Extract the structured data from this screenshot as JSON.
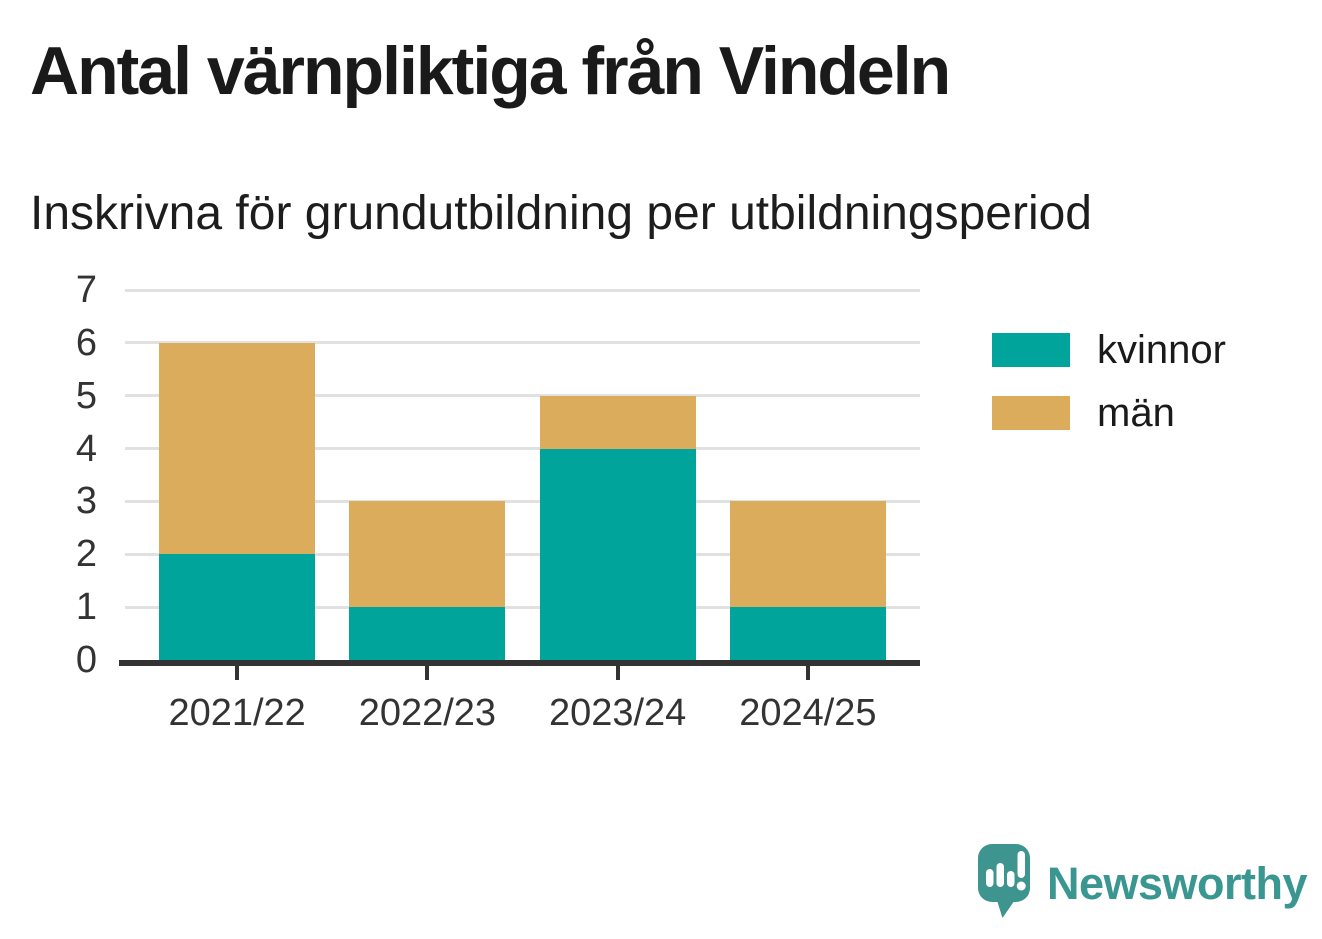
{
  "header": {
    "title": "Antal värnpliktiga från Vindeln",
    "subtitle": "Inskrivna för grundutbildning per utbildningsperiod"
  },
  "chart_data": {
    "type": "bar",
    "stacked": true,
    "categories": [
      "2021/22",
      "2022/23",
      "2023/24",
      "2024/25"
    ],
    "series": [
      {
        "name": "kvinnor",
        "color": "#00a49a",
        "values": [
          2,
          1,
          4,
          1
        ]
      },
      {
        "name": "män",
        "color": "#dbac5c",
        "values": [
          4,
          2,
          1,
          2
        ]
      }
    ],
    "totals": [
      6,
      3,
      5,
      3
    ],
    "title": "Antal värnpliktiga från Vindeln",
    "subtitle": "Inskrivna för grundutbildning per utbildningsperiod",
    "xlabel": "",
    "ylabel": "",
    "ylim": [
      0,
      7
    ],
    "yticks": [
      0,
      1,
      2,
      3,
      4,
      5,
      6,
      7
    ],
    "grid": true,
    "legend_position": "right"
  },
  "colors": {
    "kvinnor": "#00a49a",
    "man": "#dbac5c",
    "axis_line": "#333333",
    "tick_text": "#333333",
    "gridline": "#e1e1e1",
    "title_text": "#1a1a1a",
    "logo_teal": "#3a9690"
  },
  "branding": {
    "logo_text": "Newsworthy",
    "logo_icon": "speech-bubble-bar-chart-exclamation"
  }
}
